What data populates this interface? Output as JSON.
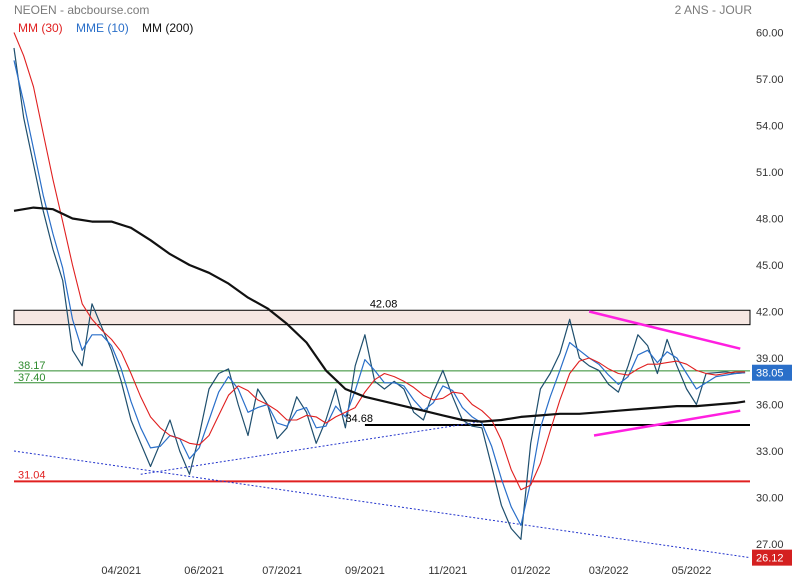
{
  "header": {
    "title": "NEOEN - abcbourse.com",
    "period": "2 ANS - JOUR"
  },
  "legend": [
    {
      "label": "MM (30)",
      "color": "#e02020"
    },
    {
      "label": "MME (10)",
      "color": "#2a6fc9"
    },
    {
      "label": "MM (200)",
      "color": "#111111"
    }
  ],
  "colors": {
    "price": "#1f4f6e",
    "mm30": "#e02020",
    "mme10": "#2a6fc9",
    "mm200": "#111111",
    "triangle": "#ff1fe0",
    "support_red": "#e02020",
    "green_zone": "#2e8b2e",
    "trend_dotted": "#2233cc",
    "badge_blue": "#2a6fc9",
    "badge_red": "#d42020"
  },
  "chart_data": {
    "type": "line",
    "title": "NEOEN - abcbourse.com",
    "subtitle": "2 ANS - JOUR",
    "ylim": [
      25,
      61
    ],
    "y_ticks": [
      27.0,
      30.0,
      33.0,
      36.0,
      39.0,
      42.0,
      45.0,
      48.0,
      51.0,
      54.0,
      57.0,
      60.0
    ],
    "y_tick_labels": [
      "27.00",
      "30.00",
      "33.00",
      "36.00",
      "39.00",
      "42.00",
      "45.00",
      "48.00",
      "51.00",
      "54.00",
      "57.00",
      "60.00"
    ],
    "x_tick_labels": [
      "04/2021",
      "06/2021",
      "07/2021",
      "09/2021",
      "11/2021",
      "01/2022",
      "03/2022",
      "05/2022"
    ],
    "x_tick_positions": [
      22,
      39,
      55,
      72,
      89,
      106,
      122,
      139
    ],
    "x_range": [
      0,
      151
    ],
    "grid": false,
    "legend_position": "top-left",
    "series": [
      {
        "name": "NEOEN",
        "x": [
          0,
          2,
          4,
          6,
          8,
          10,
          12,
          14,
          16,
          18,
          20,
          22,
          24,
          26,
          28,
          30,
          32,
          34,
          36,
          38,
          40,
          42,
          44,
          46,
          48,
          50,
          52,
          54,
          56,
          58,
          60,
          62,
          64,
          66,
          68,
          70,
          72,
          74,
          76,
          78,
          80,
          82,
          84,
          86,
          88,
          90,
          92,
          94,
          96,
          98,
          100,
          102,
          104,
          106,
          108,
          110,
          112,
          114,
          116,
          118,
          120,
          122,
          124,
          126,
          128,
          130,
          132,
          134,
          136,
          138,
          140,
          142,
          144,
          146,
          148,
          150
        ],
        "values": [
          59.0,
          54.5,
          51.5,
          48.5,
          46.0,
          44.0,
          39.5,
          38.5,
          42.5,
          41.0,
          39.5,
          37.5,
          35.0,
          33.5,
          32.0,
          33.5,
          35.0,
          33.0,
          31.5,
          34.0,
          37.0,
          38.0,
          38.3,
          36.0,
          34.0,
          37.0,
          36.0,
          33.8,
          34.5,
          36.5,
          35.5,
          33.5,
          35.0,
          37.0,
          34.5,
          38.5,
          40.5,
          37.5,
          37.0,
          37.5,
          37.0,
          35.5,
          35.0,
          36.8,
          38.2,
          36.5,
          35.0,
          34.6,
          34.5,
          32.0,
          29.5,
          28.0,
          27.3,
          33.5,
          37.0,
          38.0,
          39.3,
          41.5,
          39.0,
          38.5,
          38.2,
          37.3,
          36.8,
          38.5,
          40.5,
          39.8,
          38.0,
          40.2,
          38.5,
          37.0,
          36.0,
          38.0,
          38.05,
          38.1,
          38.0,
          38.05
        ]
      },
      {
        "name": "MME (10)",
        "x": [
          0,
          2,
          4,
          6,
          8,
          10,
          12,
          14,
          16,
          18,
          20,
          22,
          24,
          26,
          28,
          30,
          32,
          34,
          36,
          38,
          40,
          42,
          44,
          46,
          48,
          50,
          52,
          54,
          56,
          58,
          60,
          62,
          64,
          66,
          68,
          70,
          72,
          74,
          76,
          78,
          80,
          82,
          84,
          86,
          88,
          90,
          92,
          94,
          96,
          98,
          100,
          102,
          104,
          106,
          108,
          110,
          112,
          114,
          116,
          118,
          120,
          122,
          124,
          126,
          128,
          130,
          132,
          134,
          136,
          138,
          140,
          142,
          144,
          146,
          148,
          150
        ],
        "values": [
          58.2,
          55.5,
          52.5,
          49.5,
          47.0,
          44.8,
          41.5,
          39.5,
          40.5,
          40.5,
          39.8,
          38.3,
          36.2,
          34.5,
          33.2,
          33.3,
          34.0,
          33.8,
          32.5,
          33.2,
          35.0,
          36.8,
          37.8,
          37.0,
          35.5,
          35.8,
          36.0,
          34.8,
          34.6,
          35.6,
          35.8,
          34.5,
          34.6,
          35.9,
          35.2,
          36.9,
          38.9,
          38.2,
          37.4,
          37.4,
          37.2,
          36.3,
          35.6,
          36.1,
          37.2,
          36.9,
          35.8,
          35.2,
          34.8,
          33.3,
          31.2,
          29.4,
          28.2,
          31.0,
          34.5,
          36.5,
          38.2,
          40.0,
          39.5,
          39.0,
          38.6,
          37.9,
          37.3,
          37.8,
          39.2,
          39.5,
          38.7,
          39.4,
          39.0,
          38.0,
          37.0,
          37.4,
          37.8,
          37.9,
          38.0,
          38.05
        ]
      },
      {
        "name": "MM (30)",
        "x": [
          0,
          2,
          4,
          6,
          8,
          10,
          12,
          14,
          16,
          18,
          20,
          22,
          24,
          26,
          28,
          30,
          32,
          34,
          36,
          38,
          40,
          42,
          44,
          46,
          48,
          50,
          52,
          54,
          56,
          58,
          60,
          62,
          64,
          66,
          68,
          70,
          72,
          74,
          76,
          78,
          80,
          82,
          84,
          86,
          88,
          90,
          92,
          94,
          96,
          98,
          100,
          102,
          104,
          106,
          108,
          110,
          112,
          114,
          116,
          118,
          120,
          122,
          124,
          126,
          128,
          130,
          132,
          134,
          136,
          138,
          140,
          142,
          144,
          146,
          148,
          150
        ],
        "values": [
          60.0,
          58.5,
          56.5,
          53.5,
          50.5,
          47.8,
          45.0,
          42.5,
          41.5,
          40.8,
          40.2,
          39.4,
          38.0,
          36.5,
          35.2,
          34.5,
          34.0,
          33.8,
          33.5,
          33.4,
          34.0,
          35.3,
          36.6,
          37.2,
          36.9,
          36.3,
          36.0,
          35.6,
          35.0,
          35.0,
          35.3,
          35.2,
          34.8,
          35.2,
          35.5,
          35.8,
          36.8,
          37.6,
          38.0,
          37.8,
          37.5,
          37.1,
          36.6,
          36.3,
          36.4,
          36.8,
          36.7,
          36.0,
          35.6,
          35.0,
          33.7,
          31.8,
          30.5,
          30.8,
          32.2,
          34.3,
          36.3,
          38.0,
          38.8,
          39.0,
          38.7,
          38.3,
          38.0,
          37.9,
          38.3,
          38.6,
          38.6,
          38.7,
          38.8,
          38.6,
          38.2,
          38.0,
          37.9,
          38.0,
          38.1,
          38.1
        ]
      },
      {
        "name": "MM (200)",
        "x": [
          0,
          4,
          8,
          12,
          16,
          20,
          24,
          28,
          32,
          36,
          40,
          44,
          48,
          52,
          56,
          60,
          64,
          68,
          72,
          76,
          80,
          84,
          88,
          92,
          96,
          100,
          104,
          108,
          112,
          116,
          120,
          124,
          128,
          132,
          136,
          140,
          144,
          148,
          150
        ],
        "values": [
          48.5,
          48.7,
          48.6,
          48.0,
          47.8,
          47.8,
          47.4,
          46.6,
          45.7,
          45.0,
          44.5,
          43.8,
          42.9,
          42.2,
          41.2,
          40.0,
          38.2,
          37.0,
          36.5,
          36.2,
          35.9,
          35.6,
          35.3,
          35.0,
          34.9,
          35.0,
          35.2,
          35.3,
          35.4,
          35.4,
          35.5,
          35.6,
          35.7,
          35.8,
          35.9,
          35.9,
          36.0,
          36.1,
          36.2
        ]
      }
    ]
  },
  "levels": {
    "level_42": {
      "label": "42.08",
      "value": 42.08,
      "low": 41.15
    },
    "green_high": {
      "label": "38.17",
      "value": 38.17
    },
    "green_low": {
      "label": "37.40",
      "value": 37.4
    },
    "support_34": {
      "label": "34.68",
      "value": 34.68
    },
    "support_31": {
      "label": "31.04",
      "value": 31.04
    }
  },
  "badges": {
    "current": {
      "label": "38.05",
      "value": 38.05
    },
    "trend": {
      "label": "26.12",
      "value": 26.12
    }
  }
}
